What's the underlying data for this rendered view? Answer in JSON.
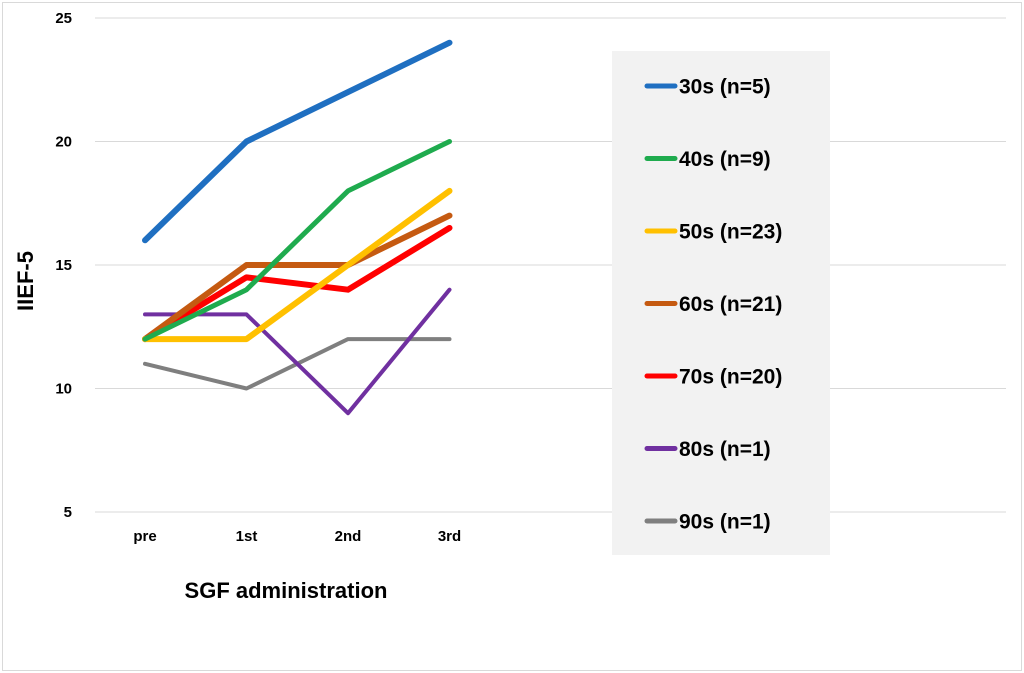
{
  "chart_data": {
    "type": "line",
    "title": "",
    "xlabel": "SGF administration",
    "ylabel": "IIEF-5",
    "categories": [
      "pre",
      "1st",
      "2nd",
      "3rd"
    ],
    "ylim": [
      5,
      25
    ],
    "yticks": [
      5,
      10,
      15,
      20,
      25
    ],
    "grid": true,
    "legend_position": "right",
    "series": [
      {
        "name": "30s (n=5)",
        "color": "#1f6fc1",
        "values": [
          16,
          20,
          22,
          24
        ]
      },
      {
        "name": "40s (n=9)",
        "color": "#1fab4e",
        "values": [
          12,
          14,
          18,
          20
        ]
      },
      {
        "name": "50s (n=23)",
        "color": "#ffc000",
        "values": [
          12,
          12,
          15,
          18
        ]
      },
      {
        "name": "60s (n=21)",
        "color": "#c55a11",
        "values": [
          12,
          15,
          15,
          17
        ]
      },
      {
        "name": "70s (n=20)",
        "color": "#ff0000",
        "values": [
          12,
          14.5,
          14,
          16.5
        ]
      },
      {
        "name": "80s (n=1)",
        "color": "#7030a0",
        "values": [
          13,
          13,
          9,
          14
        ]
      },
      {
        "name": "90s (n=1)",
        "color": "#7f7f7f",
        "values": [
          11,
          10,
          12,
          12
        ]
      }
    ]
  }
}
